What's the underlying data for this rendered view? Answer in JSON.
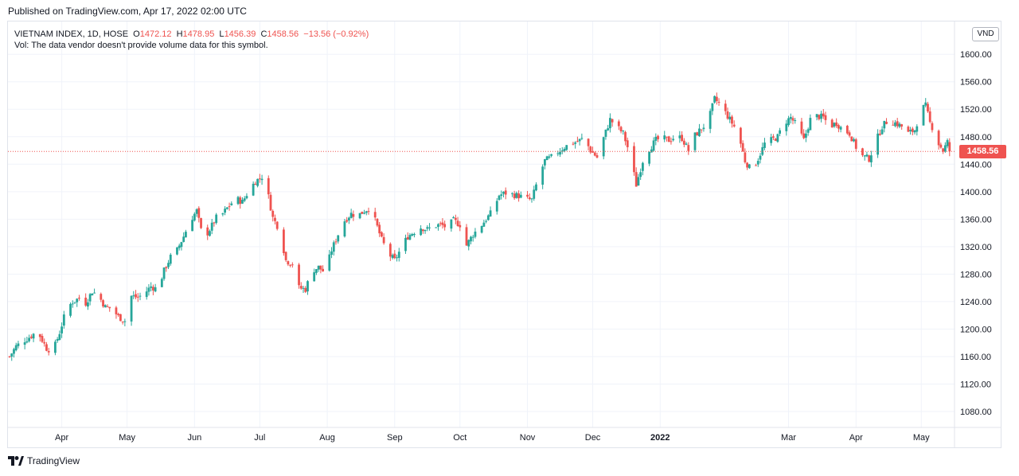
{
  "header": {
    "published": "Published on TradingView.com, Apr 17, 2022 02:00 UTC"
  },
  "legend": {
    "title": "VIETNAM INDEX, 1D, HOSE",
    "open": "1472.12",
    "high": "1478.95",
    "low": "1456.39",
    "close": "1458.56",
    "change": "−13.56 (−0.92%)",
    "vol_note": "Vol: The data vendor doesn't provide volume data for this symbol."
  },
  "currency": "VND",
  "last_price": {
    "label": "1458.56",
    "value": 1458.56
  },
  "brand": {
    "name": "TradingView",
    "icon": "tradingview-logo-icon"
  },
  "colors": {
    "up": "#26a69a",
    "down": "#ef5350",
    "grid": "#f0f3fa",
    "text": "#131722"
  },
  "chart_data": {
    "type": "candlestick",
    "title": "VIETNAM INDEX, 1D, HOSE",
    "y_ticks": [
      1080,
      1120,
      1160,
      1200,
      1240,
      1280,
      1320,
      1360,
      1400,
      1440,
      1480,
      1520,
      1560,
      1600
    ],
    "y_tick_labels": [
      "1080.00",
      "1120.00",
      "1160.00",
      "1200.00",
      "1240.00",
      "1280.00",
      "1320.00",
      "1360.00",
      "1400.00",
      "1440.00",
      "1480.00",
      "1520.00",
      "1560.00",
      "1600.00"
    ],
    "x_labels": [
      "Apr",
      "May",
      "Jun",
      "Jul",
      "Aug",
      "Sep",
      "Oct",
      "Nov",
      "Dec",
      "2022",
      "Mar",
      "Apr",
      "May"
    ],
    "x_label_days": [
      24,
      54,
      85,
      115,
      146,
      177,
      207,
      238,
      268,
      299,
      358,
      389,
      419
    ],
    "ylim": [
      1050,
      1610
    ],
    "grid": true,
    "x_start": "2021-03-08",
    "x_end": "2022-05-12",
    "closes": [
      [
        0,
        1160
      ],
      [
        3,
        1175
      ],
      [
        6,
        1182
      ],
      [
        9,
        1188
      ],
      [
        12,
        1195
      ],
      [
        14,
        1190
      ],
      [
        17,
        1172
      ],
      [
        20,
        1168
      ],
      [
        23,
        1195
      ],
      [
        26,
        1228
      ],
      [
        29,
        1240
      ],
      [
        32,
        1245
      ],
      [
        35,
        1238
      ],
      [
        38,
        1255
      ],
      [
        41,
        1248
      ],
      [
        44,
        1232
      ],
      [
        47,
        1230
      ],
      [
        50,
        1218
      ],
      [
        53,
        1212
      ],
      [
        56,
        1248
      ],
      [
        59,
        1246
      ],
      [
        62,
        1252
      ],
      [
        65,
        1262
      ],
      [
        68,
        1258
      ],
      [
        71,
        1285
      ],
      [
        74,
        1305
      ],
      [
        77,
        1315
      ],
      [
        80,
        1335
      ],
      [
        83,
        1358
      ],
      [
        86,
        1372
      ],
      [
        89,
        1330
      ],
      [
        92,
        1345
      ],
      [
        95,
        1362
      ],
      [
        98,
        1368
      ],
      [
        101,
        1380
      ],
      [
        104,
        1390
      ],
      [
        107,
        1385
      ],
      [
        110,
        1402
      ],
      [
        113,
        1415
      ],
      [
        116,
        1422
      ],
      [
        118,
        1408
      ],
      [
        121,
        1362
      ],
      [
        124,
        1345
      ],
      [
        127,
        1300
      ],
      [
        130,
        1295
      ],
      [
        133,
        1260
      ],
      [
        136,
        1258
      ],
      [
        139,
        1285
      ],
      [
        142,
        1290
      ],
      [
        145,
        1282
      ],
      [
        148,
        1315
      ],
      [
        151,
        1338
      ],
      [
        154,
        1358
      ],
      [
        157,
        1368
      ],
      [
        160,
        1365
      ],
      [
        163,
        1372
      ],
      [
        166,
        1378
      ],
      [
        168,
        1358
      ],
      [
        171,
        1330
      ],
      [
        174,
        1310
      ],
      [
        177,
        1300
      ],
      [
        180,
        1318
      ],
      [
        183,
        1335
      ],
      [
        186,
        1342
      ],
      [
        189,
        1348
      ],
      [
        192,
        1345
      ],
      [
        195,
        1350
      ],
      [
        198,
        1352
      ],
      [
        201,
        1348
      ],
      [
        204,
        1358
      ],
      [
        207,
        1352
      ],
      [
        210,
        1322
      ],
      [
        213,
        1338
      ],
      [
        216,
        1348
      ],
      [
        219,
        1360
      ],
      [
        222,
        1372
      ],
      [
        225,
        1395
      ],
      [
        228,
        1398
      ],
      [
        231,
        1396
      ],
      [
        234,
        1394
      ],
      [
        237,
        1390
      ],
      [
        240,
        1388
      ],
      [
        243,
        1420
      ],
      [
        246,
        1445
      ],
      [
        249,
        1450
      ],
      [
        252,
        1458
      ],
      [
        255,
        1465
      ],
      [
        258,
        1470
      ],
      [
        261,
        1473
      ],
      [
        264,
        1478
      ],
      [
        267,
        1460
      ],
      [
        270,
        1450
      ],
      [
        273,
        1478
      ],
      [
        276,
        1505
      ],
      [
        279,
        1495
      ],
      [
        282,
        1485
      ],
      [
        285,
        1455
      ],
      [
        288,
        1410
      ],
      [
        291,
        1445
      ],
      [
        294,
        1462
      ],
      [
        297,
        1475
      ],
      [
        300,
        1478
      ],
      [
        303,
        1475
      ],
      [
        306,
        1480
      ],
      [
        309,
        1478
      ],
      [
        312,
        1460
      ],
      [
        315,
        1482
      ],
      [
        318,
        1492
      ],
      [
        321,
        1502
      ],
      [
        324,
        1535
      ],
      [
        327,
        1525
      ],
      [
        330,
        1510
      ],
      [
        333,
        1495
      ],
      [
        336,
        1470
      ],
      [
        338,
        1445
      ],
      [
        341,
        1430
      ],
      [
        344,
        1448
      ],
      [
        347,
        1470
      ],
      [
        350,
        1475
      ],
      [
        353,
        1480
      ],
      [
        356,
        1500
      ],
      [
        359,
        1508
      ],
      [
        362,
        1495
      ],
      [
        365,
        1475
      ],
      [
        368,
        1505
      ],
      [
        371,
        1510
      ],
      [
        374,
        1508
      ],
      [
        377,
        1495
      ],
      [
        380,
        1500
      ],
      [
        383,
        1490
      ],
      [
        386,
        1485
      ],
      [
        389,
        1465
      ],
      [
        392,
        1452
      ],
      [
        395,
        1448
      ],
      [
        398,
        1472
      ],
      [
        401,
        1495
      ],
      [
        404,
        1505
      ],
      [
        407,
        1500
      ],
      [
        410,
        1495
      ],
      [
        413,
        1485
      ],
      [
        416,
        1490
      ],
      [
        419,
        1520
      ],
      [
        421,
        1525
      ],
      [
        423,
        1500
      ],
      [
        425,
        1488
      ],
      [
        427,
        1470
      ],
      [
        429,
        1460
      ],
      [
        431,
        1472
      ],
      [
        432,
        1458.56
      ]
    ]
  }
}
